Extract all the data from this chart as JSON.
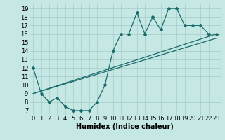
{
  "xlabel": "Humidex (Indice chaleur)",
  "ylabel": "",
  "bg_color": "#c5e8e5",
  "line_color": "#1a6b6b",
  "xlim": [
    -0.5,
    23.5
  ],
  "ylim": [
    6.5,
    19.5
  ],
  "xticks": [
    0,
    1,
    2,
    3,
    4,
    5,
    6,
    7,
    8,
    9,
    10,
    11,
    12,
    13,
    14,
    15,
    16,
    17,
    18,
    19,
    20,
    21,
    22,
    23
  ],
  "yticks": [
    7,
    8,
    9,
    10,
    11,
    12,
    13,
    14,
    15,
    16,
    17,
    18,
    19
  ],
  "main_x": [
    0,
    1,
    2,
    3,
    4,
    5,
    6,
    7,
    8,
    9,
    10,
    11,
    12,
    13,
    14,
    15,
    16,
    17,
    18,
    19,
    20,
    21,
    22,
    23
  ],
  "main_y": [
    12,
    9,
    8,
    8.5,
    7.5,
    7,
    7,
    7,
    8,
    10,
    14,
    16,
    16,
    18.5,
    16,
    18,
    16.5,
    19,
    19,
    17,
    17,
    17,
    16,
    16
  ],
  "line1_x": [
    0,
    23
  ],
  "line1_y": [
    9,
    16
  ],
  "line2_x": [
    0,
    23
  ],
  "line2_y": [
    9,
    15.5
  ],
  "grid_color": "#aacfcc",
  "marker": "D",
  "markersize": 2,
  "linewidth": 0.9,
  "xlabel_fontsize": 7,
  "tick_fontsize": 6
}
